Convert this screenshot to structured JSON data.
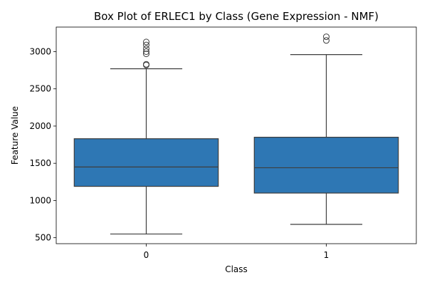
{
  "chart_data": {
    "type": "box",
    "title": "Box Plot of ERLEC1 by Class (Gene Expression - NMF)",
    "xlabel": "Class",
    "ylabel": "Feature Value",
    "ylim": [
      420,
      3330
    ],
    "yticks": [
      500,
      1000,
      1500,
      2000,
      2500,
      3000
    ],
    "categories": [
      "0",
      "1"
    ],
    "box_color": "#2e77b4",
    "line_color": "#3d3d3d",
    "boxes": [
      {
        "category": "0",
        "whisker_low": 550,
        "q1": 1190,
        "median": 1450,
        "q3": 1830,
        "whisker_high": 2770,
        "outliers": [
          2820,
          2830,
          2970,
          3000,
          3040,
          3090,
          3130
        ]
      },
      {
        "category": "1",
        "whisker_low": 680,
        "q1": 1100,
        "median": 1440,
        "q3": 1850,
        "whisker_high": 2960,
        "outliers": [
          3150,
          3200
        ]
      }
    ]
  }
}
